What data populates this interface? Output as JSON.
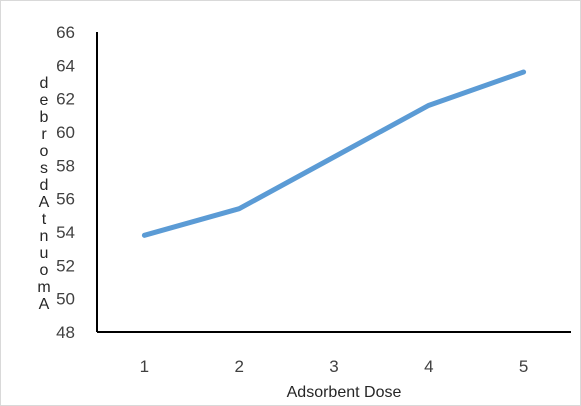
{
  "chart_data": {
    "type": "line",
    "categories": [
      "1",
      "2",
      "3",
      "4",
      "5"
    ],
    "series": [
      {
        "values": [
          53.8,
          55.4,
          58.5,
          61.6,
          63.6
        ],
        "color": "#5b9bd5"
      }
    ],
    "title": "",
    "xlabel": "Adsorbent Dose",
    "ylabel": "Amount Adsorbed",
    "ylim": [
      48,
      66
    ],
    "yticks": [
      "48",
      "50",
      "52",
      "54",
      "56",
      "58",
      "60",
      "62",
      "64",
      "66"
    ],
    "grid": false,
    "legend": "none"
  }
}
